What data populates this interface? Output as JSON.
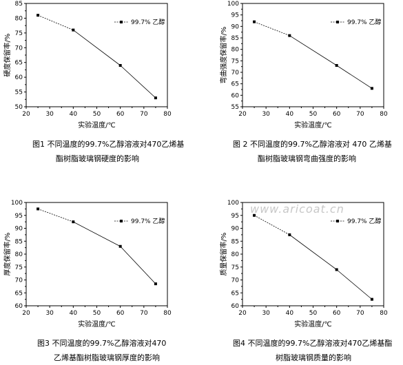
{
  "watermark": "www.aricoat.cn",
  "chart_data": [
    {
      "type": "line",
      "x": [
        25,
        40,
        60,
        75
      ],
      "series": [
        {
          "name": "99.7% 乙醇",
          "values": [
            81,
            76,
            64,
            53
          ]
        }
      ],
      "xlim": [
        20,
        80
      ],
      "xticks": [
        20,
        30,
        40,
        50,
        60,
        70,
        80
      ],
      "ylim": [
        50,
        85
      ],
      "yticks": [
        50,
        55,
        60,
        65,
        70,
        75,
        80,
        85
      ],
      "xlabel": "实验温度/℃",
      "ylabel": "硬度保留率/%",
      "caption": [
        "图1  不同温度的99.7%乙醇溶液对470乙烯基",
        "酯树脂玻璃钢硬度的影响"
      ],
      "legend_position": "top-right",
      "grid": false
    },
    {
      "type": "line",
      "x": [
        25,
        40,
        60,
        75
      ],
      "series": [
        {
          "name": "99.7% 乙醇",
          "values": [
            92,
            86,
            73,
            63
          ]
        }
      ],
      "xlim": [
        20,
        80
      ],
      "xticks": [
        20,
        30,
        40,
        50,
        60,
        70,
        80
      ],
      "ylim": [
        55,
        100
      ],
      "yticks": [
        55,
        60,
        65,
        70,
        75,
        80,
        85,
        90,
        95,
        100
      ],
      "xlabel": "实验温度/℃",
      "ylabel": "弯曲强度保留率/%",
      "caption": [
        "图 2  不同温度的99.7%乙醇溶液对 470 乙烯基",
        "酯树脂玻璃钢弯曲强度的影响"
      ],
      "legend_position": "top-right",
      "grid": false
    },
    {
      "type": "line",
      "x": [
        25,
        40,
        60,
        75
      ],
      "series": [
        {
          "name": "99.7% 乙醇",
          "values": [
            97.5,
            92.5,
            83,
            68.5
          ]
        }
      ],
      "xlim": [
        20,
        80
      ],
      "xticks": [
        20,
        30,
        40,
        50,
        60,
        70,
        80
      ],
      "ylim": [
        60,
        100
      ],
      "yticks": [
        60,
        65,
        70,
        75,
        80,
        85,
        90,
        95,
        100
      ],
      "xlabel": "实验温度/℃",
      "ylabel": "厚度保留率/%",
      "caption": [
        "图3    不同温度的99.7%乙醇溶液对470",
        "乙烯基酯树脂玻璃钢厚度的影响"
      ],
      "legend_position": "top-right",
      "grid": false
    },
    {
      "type": "line",
      "x": [
        25,
        40,
        60,
        75
      ],
      "series": [
        {
          "name": "99.7% 乙醇",
          "values": [
            95,
            87.5,
            74,
            62.5
          ]
        }
      ],
      "xlim": [
        20,
        80
      ],
      "xticks": [
        20,
        30,
        40,
        50,
        60,
        70,
        80
      ],
      "ylim": [
        60,
        100
      ],
      "yticks": [
        60,
        65,
        70,
        75,
        80,
        85,
        90,
        95,
        100
      ],
      "xlabel": "实验温度/℃",
      "ylabel": "质量保留率/%",
      "caption": [
        "图4    不同温度的99.7%乙醇溶液对470乙烯基酯",
        "树脂玻璃钢质量的影响"
      ],
      "legend_position": "top-right",
      "grid": false
    }
  ]
}
